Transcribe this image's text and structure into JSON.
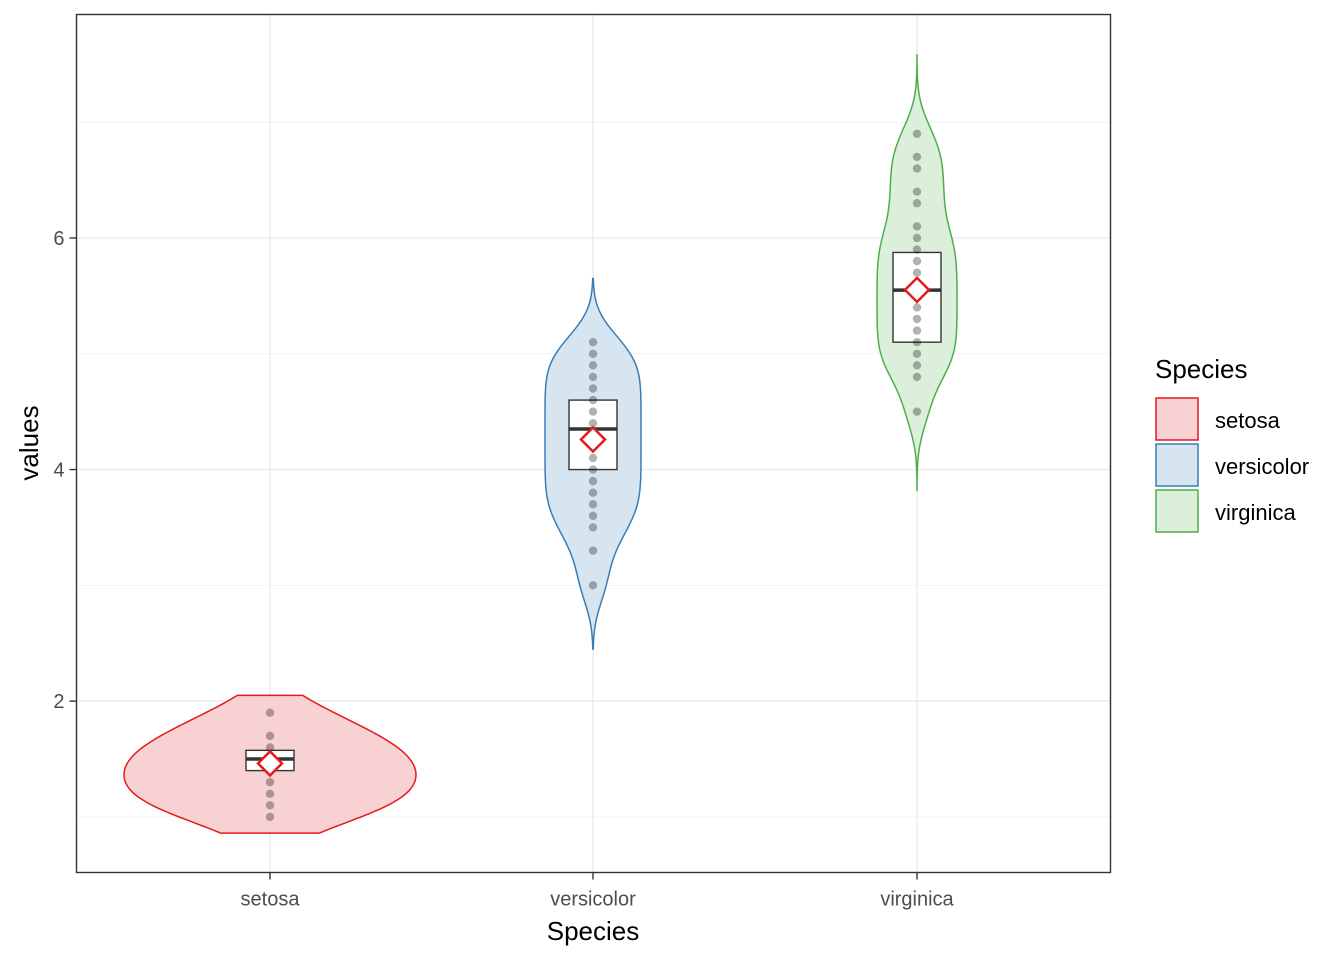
{
  "chart_data": {
    "type": "violin",
    "title": "",
    "xlabel": "Species",
    "ylabel": "values",
    "categories": [
      "setosa",
      "versicolor",
      "virginica"
    ],
    "y_ticks": [
      2,
      4,
      6
    ],
    "y_tick_labels": [
      "2",
      "4",
      "6"
    ],
    "ylim": [
      0.52,
      7.93
    ],
    "grid": true,
    "legend": {
      "title": "Species",
      "position": "right",
      "entries": [
        "setosa",
        "versicolor",
        "virginica"
      ]
    },
    "series": [
      {
        "name": "setosa",
        "color": "#E41A1C",
        "fill": "#F8D1D2",
        "violin_range": [
          0.86,
          2.05
        ],
        "box": {
          "q1": 1.4,
          "median": 1.5,
          "q3": 1.575
        },
        "mean": 1.462,
        "points": [
          1.0,
          1.1,
          1.2,
          1.3,
          1.4,
          1.5,
          1.6,
          1.7,
          1.9
        ]
      },
      {
        "name": "versicolor",
        "color": "#377EB8",
        "fill": "#D7E5F1",
        "violin_range": [
          2.45,
          5.65
        ],
        "box": {
          "q1": 4.0,
          "median": 4.35,
          "q3": 4.6
        },
        "mean": 4.26,
        "points": [
          3.0,
          3.3,
          3.5,
          3.6,
          3.7,
          3.8,
          3.9,
          4.0,
          4.1,
          4.2,
          4.3,
          4.4,
          4.5,
          4.6,
          4.7,
          4.8,
          4.9,
          5.0,
          5.1
        ]
      },
      {
        "name": "virginica",
        "color": "#4DAF4A",
        "fill": "#DBEFDB",
        "violin_range": [
          3.82,
          7.58
        ],
        "box": {
          "q1": 5.1,
          "median": 5.55,
          "q3": 5.875
        },
        "mean": 5.552,
        "points": [
          4.5,
          4.8,
          4.9,
          5.0,
          5.1,
          5.2,
          5.3,
          5.4,
          5.5,
          5.6,
          5.7,
          5.8,
          5.9,
          6.0,
          6.1,
          6.3,
          6.4,
          6.6,
          6.7,
          6.9
        ]
      }
    ]
  }
}
